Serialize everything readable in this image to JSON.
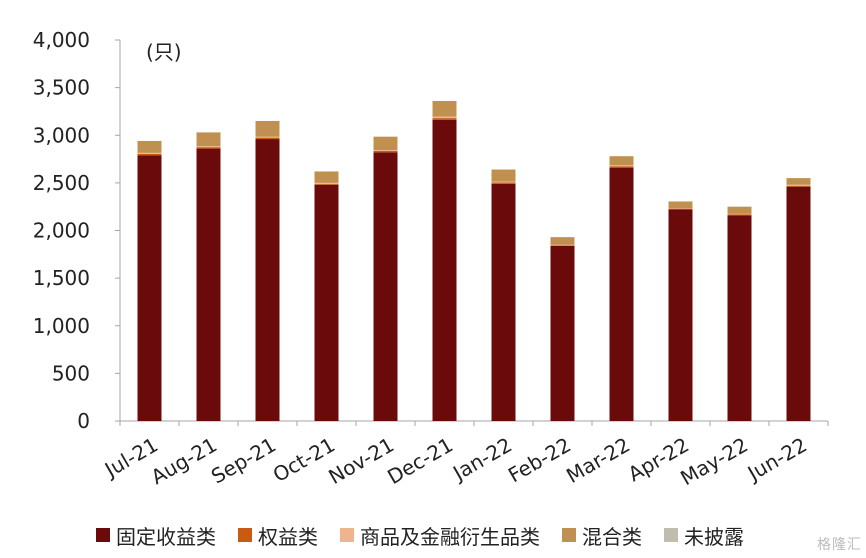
{
  "chart_data": {
    "type": "bar",
    "stacked": true,
    "unit_label": "(只)",
    "categories": [
      "Jul-21",
      "Aug-21",
      "Sep-21",
      "Oct-21",
      "Nov-21",
      "Dec-21",
      "Jan-22",
      "Feb-22",
      "Mar-22",
      "Apr-22",
      "May-22",
      "Jun-22"
    ],
    "ylim": [
      0,
      4000
    ],
    "yticks": [
      0,
      500,
      1000,
      1500,
      2000,
      2500,
      3000,
      3500,
      4000
    ],
    "ytick_labels": [
      "0",
      "500",
      "1,000",
      "1,500",
      "2,000",
      "2,500",
      "3,000",
      "3,500",
      "4,000"
    ],
    "grid": false,
    "legend_position": "bottom",
    "series": [
      {
        "name": "固定收益类",
        "color": "#6b0a0a",
        "values": [
          2790,
          2860,
          2960,
          2480,
          2820,
          3160,
          2490,
          1840,
          2660,
          2220,
          2160,
          2460
        ]
      },
      {
        "name": "权益类",
        "color": "#c85a14",
        "values": [
          15,
          15,
          15,
          10,
          15,
          20,
          15,
          5,
          15,
          10,
          10,
          10
        ]
      },
      {
        "name": "商品及金融衍生品类",
        "color": "#f0b48c",
        "values": [
          10,
          10,
          10,
          10,
          10,
          15,
          10,
          5,
          10,
          5,
          5,
          10
        ]
      },
      {
        "name": "混合类",
        "color": "#c09050",
        "values": [
          125,
          145,
          165,
          120,
          140,
          165,
          125,
          80,
          95,
          70,
          75,
          70
        ]
      },
      {
        "name": "未披露",
        "color": "#bfbdae",
        "values": [
          0,
          0,
          0,
          0,
          0,
          0,
          0,
          0,
          0,
          0,
          0,
          0
        ]
      }
    ]
  },
  "watermark": "格隆汇"
}
